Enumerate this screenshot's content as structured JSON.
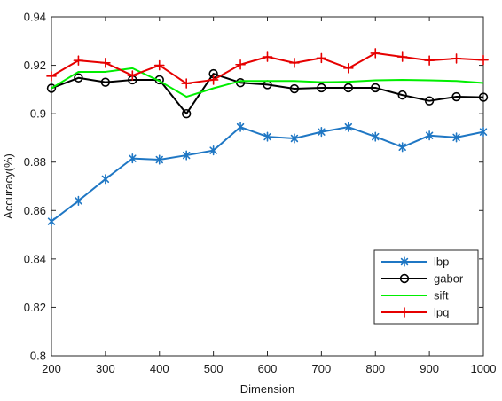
{
  "chart_data": {
    "type": "line",
    "title": "",
    "xlabel": "Dimension",
    "ylabel": "Accuracy(%)",
    "xlim": [
      200,
      1000
    ],
    "ylim": [
      0.8,
      0.94
    ],
    "x_ticks": [
      "200",
      "300",
      "400",
      "500",
      "600",
      "700",
      "800",
      "900",
      "1000"
    ],
    "y_ticks": [
      "0.8",
      "0.82",
      "0.84",
      "0.86",
      "0.88",
      "0.9",
      "0.92",
      "0.94"
    ],
    "x": [
      200,
      250,
      300,
      350,
      400,
      450,
      500,
      550,
      600,
      650,
      700,
      750,
      800,
      850,
      900,
      950,
      1000
    ],
    "grid": false,
    "legend_position": "bottom-right",
    "series": [
      {
        "name": "lbp",
        "color": "#1f77c4",
        "marker": "asterisk",
        "values": [
          0.8555,
          0.864,
          0.873,
          0.8815,
          0.881,
          0.8828,
          0.8848,
          0.8945,
          0.8905,
          0.8898,
          0.8925,
          0.8945,
          0.8905,
          0.8862,
          0.891,
          0.8902,
          0.8925
        ]
      },
      {
        "name": "gabor",
        "color": "#000000",
        "marker": "circle",
        "values": [
          0.9105,
          0.9148,
          0.913,
          0.914,
          0.914,
          0.9,
          0.9165,
          0.9128,
          0.912,
          0.9103,
          0.9107,
          0.9107,
          0.9107,
          0.9077,
          0.9053,
          0.907,
          0.9068
        ]
      },
      {
        "name": "sift",
        "color": "#00ee00",
        "marker": "none",
        "values": [
          0.9105,
          0.9173,
          0.9173,
          0.9188,
          0.9135,
          0.907,
          0.9105,
          0.9135,
          0.9135,
          0.9135,
          0.913,
          0.9132,
          0.9138,
          0.914,
          0.9138,
          0.9135,
          0.9127
        ]
      },
      {
        "name": "lpq",
        "color": "#e60000",
        "marker": "plus",
        "values": [
          0.9155,
          0.922,
          0.921,
          0.9158,
          0.92,
          0.9125,
          0.914,
          0.9203,
          0.9235,
          0.921,
          0.923,
          0.9188,
          0.925,
          0.9235,
          0.922,
          0.9228,
          0.9222
        ]
      }
    ]
  }
}
